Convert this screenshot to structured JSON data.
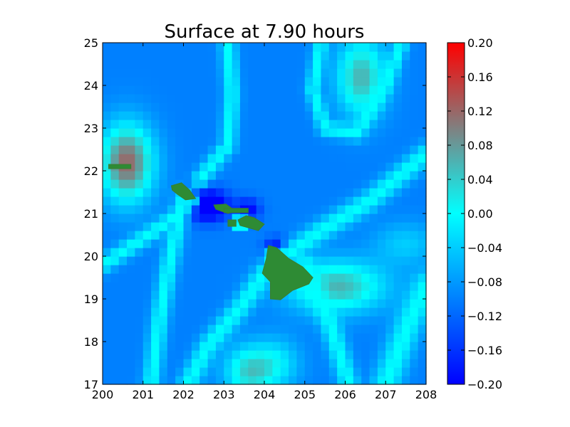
{
  "chart_data": {
    "type": "heatmap",
    "title": "Surface at 7.90 hours",
    "xlabel": "",
    "ylabel": "",
    "xlim": [
      200,
      208
    ],
    "ylim": [
      17,
      25
    ],
    "x_ticks": [
      "200",
      "201",
      "202",
      "203",
      "204",
      "205",
      "206",
      "207",
      "208"
    ],
    "y_ticks": [
      "17",
      "18",
      "19",
      "20",
      "21",
      "22",
      "23",
      "24",
      "25"
    ],
    "grid": false,
    "colorbar": {
      "min": -0.2,
      "max": 0.2,
      "ticks": [
        "0.20",
        "0.16",
        "0.12",
        "0.08",
        "0.04",
        "0.00",
        "−0.04",
        "−0.08",
        "−0.12",
        "−0.16",
        "−0.20"
      ],
      "stops": [
        {
          "value": -0.2,
          "color": "#0000ff"
        },
        {
          "value": -0.1,
          "color": "#0080ff"
        },
        {
          "value": 0.0,
          "color": "#00ffff"
        },
        {
          "value": 0.1,
          "color": "#808080"
        },
        {
          "value": 0.2,
          "color": "#ff0000"
        }
      ]
    },
    "land_color": "#2e8b34",
    "grid_resolution": 0.2,
    "anomalies": [
      {
        "x": 200.6,
        "y": 22.2,
        "sx": 0.65,
        "sy": 0.9,
        "amp": 0.22
      },
      {
        "x": 205.8,
        "y": 19.3,
        "sx": 1.2,
        "sy": 0.6,
        "amp": 0.16
      },
      {
        "x": 207.5,
        "y": 20.3,
        "sx": 0.8,
        "sy": 0.5,
        "amp": 0.06
      },
      {
        "x": 206.4,
        "y": 24.2,
        "sx": 0.6,
        "sy": 0.9,
        "amp": 0.16
      },
      {
        "x": 203.6,
        "y": 17.3,
        "sx": 0.6,
        "sy": 0.6,
        "amp": 0.13
      },
      {
        "x": 204.3,
        "y": 17.5,
        "sx": 0.6,
        "sy": 0.6,
        "amp": 0.08
      },
      {
        "x": 202.6,
        "y": 21.2,
        "sx": 0.5,
        "sy": 0.35,
        "amp": -0.17
      },
      {
        "x": 203.6,
        "y": 21.1,
        "sx": 0.3,
        "sy": 0.25,
        "amp": -0.1
      },
      {
        "x": 204.3,
        "y": 20.25,
        "sx": 0.28,
        "sy": 0.2,
        "amp": -0.1
      },
      {
        "x": 203.4,
        "y": 20.8,
        "sx": 0.15,
        "sy": 0.12,
        "amp": 0.32
      },
      {
        "x": 204.15,
        "y": 20.0,
        "sx": 0.12,
        "sy": 0.1,
        "amp": 0.28
      }
    ],
    "cyan_bands": [
      {
        "points": [
          [
            201.2,
            17.0
          ],
          [
            201.4,
            18.5
          ],
          [
            201.6,
            19.6
          ],
          [
            201.8,
            20.5
          ],
          [
            202.0,
            21.4
          ]
        ],
        "width": 0.22
      },
      {
        "points": [
          [
            200.0,
            19.8
          ],
          [
            200.8,
            20.3
          ],
          [
            201.6,
            20.8
          ],
          [
            202.2,
            21.3
          ]
        ],
        "width": 0.2
      },
      {
        "points": [
          [
            204.0,
            19.6
          ],
          [
            203.4,
            18.8
          ],
          [
            202.6,
            17.9
          ],
          [
            202.1,
            17.0
          ]
        ],
        "width": 0.25
      },
      {
        "points": [
          [
            205.0,
            19.8
          ],
          [
            205.6,
            18.5
          ],
          [
            206.1,
            17.0
          ]
        ],
        "width": 0.25
      },
      {
        "points": [
          [
            207.0,
            17.0
          ],
          [
            207.6,
            18.5
          ],
          [
            208.0,
            19.3
          ]
        ],
        "width": 0.35
      },
      {
        "points": [
          [
            202.4,
            21.8
          ],
          [
            203.1,
            22.6
          ],
          [
            203.2,
            23.8
          ],
          [
            203.1,
            25.0
          ]
        ],
        "width": 0.2
      },
      {
        "points": [
          [
            205.4,
            25.0
          ],
          [
            205.2,
            23.9
          ],
          [
            205.5,
            23.0
          ],
          [
            206.3,
            22.9
          ],
          [
            207.0,
            24.0
          ],
          [
            207.4,
            25.0
          ]
        ],
        "width": 0.18
      },
      {
        "points": [
          [
            204.5,
            20.0
          ],
          [
            205.4,
            20.6
          ],
          [
            206.6,
            21.3
          ],
          [
            208.0,
            22.4
          ]
        ],
        "width": 0.25
      }
    ],
    "islands": [
      {
        "name": "Niihau",
        "points": [
          [
            200.15,
            22.15
          ],
          [
            200.7,
            22.15
          ],
          [
            200.7,
            22.05
          ],
          [
            200.15,
            22.05
          ]
        ]
      },
      {
        "name": "Kauai",
        "points": [
          [
            201.7,
            21.65
          ],
          [
            201.95,
            21.72
          ],
          [
            202.15,
            21.55
          ],
          [
            202.3,
            21.35
          ],
          [
            202.05,
            21.32
          ],
          [
            201.85,
            21.45
          ],
          [
            201.72,
            21.55
          ]
        ]
      },
      {
        "name": "Oahu",
        "points": [
          [
            202.75,
            21.2
          ],
          [
            203.05,
            21.22
          ],
          [
            203.3,
            21.05
          ],
          [
            203.1,
            21.0
          ],
          [
            202.8,
            21.1
          ]
        ]
      },
      {
        "name": "Molokai",
        "points": [
          [
            203.0,
            21.12
          ],
          [
            203.6,
            21.12
          ],
          [
            203.6,
            21.02
          ],
          [
            203.0,
            21.02
          ]
        ]
      },
      {
        "name": "Maui",
        "points": [
          [
            203.35,
            20.85
          ],
          [
            203.55,
            20.95
          ],
          [
            203.75,
            20.9
          ],
          [
            204.0,
            20.75
          ],
          [
            203.85,
            20.6
          ],
          [
            203.55,
            20.68
          ],
          [
            203.4,
            20.72
          ]
        ]
      },
      {
        "name": "Lanai",
        "points": [
          [
            203.1,
            20.85
          ],
          [
            203.3,
            20.85
          ],
          [
            203.3,
            20.7
          ],
          [
            203.1,
            20.7
          ]
        ]
      },
      {
        "name": "Hawaii",
        "points": [
          [
            204.1,
            20.25
          ],
          [
            204.3,
            20.2
          ],
          [
            204.6,
            19.95
          ],
          [
            204.95,
            19.75
          ],
          [
            205.2,
            19.5
          ],
          [
            205.1,
            19.35
          ],
          [
            204.7,
            19.2
          ],
          [
            204.4,
            18.98
          ],
          [
            204.15,
            19.0
          ],
          [
            204.15,
            19.4
          ],
          [
            203.95,
            19.6
          ],
          [
            204.05,
            19.95
          ]
        ]
      }
    ]
  }
}
